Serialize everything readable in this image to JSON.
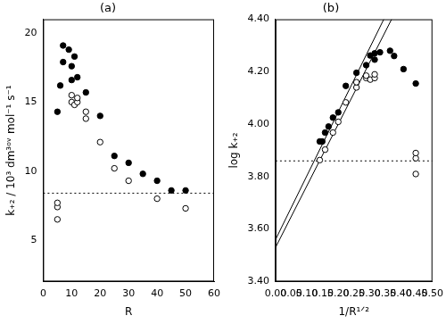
{
  "chart_data": [
    {
      "type": "scatter",
      "title": "(a)",
      "x_label": "R",
      "y_label": "k₊₂ / 10³ dm³ᵒᵛ mol⁻¹ s⁻¹",
      "xlim": [
        0,
        60
      ],
      "xticks": [
        0,
        10,
        20,
        30,
        40,
        50,
        60
      ],
      "ylim": [
        2,
        21
      ],
      "yticks": [
        5,
        10,
        15,
        20
      ],
      "grid": false,
      "series": [
        {
          "type": "scatter",
          "marker": "circle",
          "color": "#000000",
          "x": [
            5,
            6,
            7,
            7,
            9,
            10,
            10,
            11,
            12,
            15,
            20,
            25,
            30,
            35,
            40,
            45,
            50
          ],
          "values": [
            14.3,
            16.2,
            17.9,
            19.1,
            18.8,
            16.6,
            17.6,
            18.3,
            16.8,
            15.7,
            14.0,
            11.1,
            10.6,
            9.8,
            9.3,
            8.6,
            8.6
          ]
        },
        {
          "type": "scatter",
          "marker": "open_circle",
          "color": "#000000",
          "x": [
            5,
            5,
            5,
            10,
            10,
            11,
            12,
            12,
            15,
            15,
            20,
            25,
            30,
            40,
            50
          ],
          "values": [
            6.5,
            7.4,
            7.7,
            15.0,
            15.5,
            14.8,
            15.0,
            15.3,
            13.8,
            14.3,
            12.1,
            10.2,
            9.3,
            8.0,
            7.3
          ]
        },
        {
          "type": "line",
          "line_style": "dotted",
          "color": "#000000",
          "x": [
            0,
            60
          ],
          "values": [
            8.4,
            8.4
          ]
        }
      ]
    },
    {
      "type": "scatter",
      "title": "(b)",
      "x_label": "1/R¹ᐟ²",
      "y_label": "log k₊₂",
      "xlim": [
        0,
        0.5
      ],
      "xticks": [
        {
          "value": 0,
          "label": "0.00"
        },
        {
          "value": 0.05,
          "label": "0.05"
        },
        {
          "value": 0.1,
          "label": "0.10"
        },
        {
          "value": 0.15,
          "label": "0.15"
        },
        {
          "value": 0.2,
          "label": "0.20"
        },
        {
          "value": 0.25,
          "label": "0.25"
        },
        {
          "value": 0.3,
          "label": "0.30"
        },
        {
          "value": 0.35,
          "label": "0.35"
        },
        {
          "value": 0.4,
          "label": "0.40"
        },
        {
          "value": 0.45,
          "label": "0.45"
        },
        {
          "value": 0.5,
          "label": "0.50"
        }
      ],
      "ylim": [
        3.4,
        4.4
      ],
      "yticks": [
        {
          "value": 3.4,
          "label": "3.40"
        },
        {
          "value": 3.6,
          "label": "3.60"
        },
        {
          "value": 3.8,
          "label": "3.80"
        },
        {
          "value": 4.0,
          "label": "4.00"
        },
        {
          "value": 4.2,
          "label": "4.20"
        },
        {
          "value": 4.4,
          "label": "4.40"
        }
      ],
      "grid": false,
      "series": [
        {
          "type": "scatter",
          "marker": "circle",
          "color": "#000000",
          "x": [
            0.141,
            0.149,
            0.158,
            0.169,
            0.183,
            0.2,
            0.224,
            0.258,
            0.289,
            0.302,
            0.316,
            0.316,
            0.333,
            0.365,
            0.378,
            0.408,
            0.447
          ],
          "values": [
            3.934,
            3.934,
            3.968,
            3.991,
            4.025,
            4.045,
            4.146,
            4.196,
            4.225,
            4.262,
            4.246,
            4.27,
            4.274,
            4.28,
            4.26,
            4.21,
            4.155
          ]
        },
        {
          "type": "scatter",
          "marker": "open_circle",
          "color": "#000000",
          "x": [
            0.141,
            0.158,
            0.183,
            0.2,
            0.224,
            0.258,
            0.258,
            0.289,
            0.289,
            0.302,
            0.316,
            0.316,
            0.447,
            0.447,
            0.447
          ],
          "values": [
            3.863,
            3.903,
            3.968,
            4.009,
            4.083,
            4.14,
            4.16,
            4.176,
            4.185,
            4.17,
            4.176,
            4.19,
            3.81,
            3.87,
            3.89
          ]
        },
        {
          "type": "line",
          "line_style": "solid",
          "color": "#000000",
          "x": [
            0,
            0.345
          ],
          "values": [
            3.56,
            4.4
          ]
        },
        {
          "type": "line",
          "line_style": "solid",
          "color": "#000000",
          "x": [
            0,
            0.37
          ],
          "values": [
            3.53,
            4.4
          ]
        },
        {
          "type": "line",
          "line_style": "dotted",
          "color": "#000000",
          "x": [
            0,
            0.5
          ],
          "values": [
            3.86,
            3.86
          ]
        }
      ]
    }
  ]
}
